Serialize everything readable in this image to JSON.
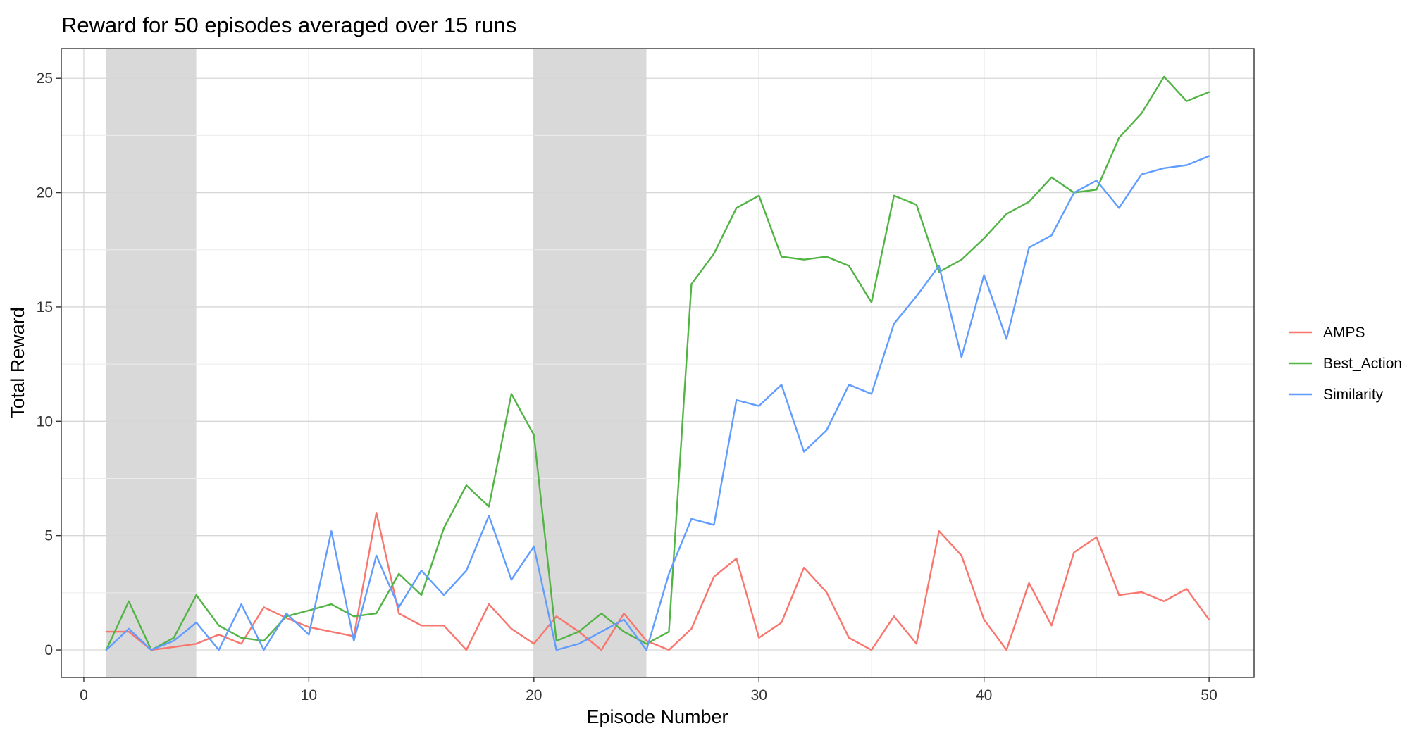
{
  "chart_data": {
    "type": "line",
    "title": "Reward for 50 episodes averaged over 15 runs",
    "xlabel": "Episode Number",
    "ylabel": "Total Reward",
    "xlim": [
      -1,
      52
    ],
    "ylim": [
      -1.2,
      26.3
    ],
    "x_ticks": [
      0,
      10,
      20,
      30,
      40,
      50
    ],
    "y_ticks": [
      0,
      5,
      10,
      15,
      20,
      25
    ],
    "x_minor_ticks": [
      5,
      15,
      25,
      35,
      45
    ],
    "y_minor_ticks": [
      2.5,
      7.5,
      12.5,
      17.5,
      22.5
    ],
    "grid": true,
    "legend_position": "right",
    "shaded_regions": [
      {
        "x_start": 1,
        "x_end": 5,
        "color": "#d9d9d9"
      },
      {
        "x_start": 20,
        "x_end": 25,
        "color": "#d9d9d9"
      }
    ],
    "x": [
      1,
      2,
      3,
      4,
      5,
      6,
      7,
      8,
      9,
      10,
      11,
      12,
      13,
      14,
      15,
      16,
      17,
      18,
      19,
      20,
      21,
      22,
      23,
      24,
      25,
      26,
      27,
      28,
      29,
      30,
      31,
      32,
      33,
      34,
      35,
      36,
      37,
      38,
      39,
      40,
      41,
      42,
      43,
      44,
      45,
      46,
      47,
      48,
      49,
      50
    ],
    "series": [
      {
        "name": "AMPS",
        "color": "#F8766D",
        "values": [
          0.8,
          0.8,
          0.0,
          0.13,
          0.27,
          0.67,
          0.27,
          1.87,
          1.4,
          1.0,
          0.8,
          0.6,
          6.0,
          1.6,
          1.07,
          1.07,
          0.0,
          2.0,
          0.93,
          0.27,
          1.47,
          0.8,
          0.0,
          1.6,
          0.4,
          0.0,
          0.93,
          3.2,
          4.0,
          0.53,
          1.2,
          3.6,
          2.53,
          0.53,
          0.0,
          1.47,
          0.27,
          5.2,
          4.13,
          1.33,
          0.0,
          2.93,
          1.07,
          4.27,
          4.93,
          2.4,
          2.53,
          2.13,
          2.67,
          1.33
        ]
      },
      {
        "name": "Best_Action",
        "color": "#53B446",
        "values": [
          0.0,
          2.13,
          0.0,
          0.53,
          2.4,
          1.07,
          0.53,
          0.4,
          1.47,
          1.73,
          2.0,
          1.47,
          1.6,
          3.33,
          2.4,
          5.33,
          7.2,
          6.27,
          11.2,
          9.4,
          0.4,
          0.8,
          1.6,
          0.8,
          0.27,
          0.8,
          16.0,
          17.33,
          19.33,
          19.87,
          17.2,
          17.07,
          17.2,
          16.8,
          15.2,
          19.87,
          19.47,
          16.53,
          17.07,
          18.0,
          19.07,
          19.6,
          20.67,
          20.0,
          20.13,
          22.4,
          23.47,
          25.07,
          24.0,
          24.4
        ]
      },
      {
        "name": "Similarity",
        "color": "#619CFF",
        "values": [
          0.0,
          0.93,
          0.0,
          0.4,
          1.2,
          0.0,
          2.0,
          0.0,
          1.6,
          0.67,
          5.2,
          0.4,
          4.13,
          1.87,
          3.47,
          2.4,
          3.47,
          5.87,
          3.07,
          4.53,
          0.0,
          0.27,
          0.8,
          1.33,
          0.0,
          3.33,
          5.73,
          5.47,
          10.93,
          10.67,
          11.6,
          8.67,
          9.6,
          11.6,
          11.2,
          14.27,
          15.47,
          16.8,
          12.8,
          16.4,
          13.6,
          17.6,
          18.13,
          20.0,
          20.53,
          19.33,
          20.8,
          21.07,
          21.2,
          21.6
        ]
      }
    ]
  }
}
